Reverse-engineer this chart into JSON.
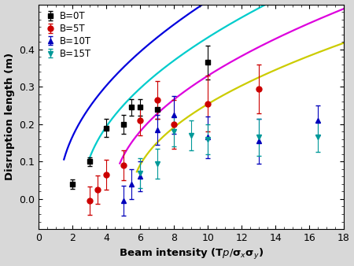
{
  "title": "",
  "xlabel_parts": [
    "Beam intensity (T",
    "p",
    "/",
    "sigma_x",
    "sigma_y",
    ")"
  ],
  "ylabel": "Disruption length (m)",
  "xlim": [
    1,
    18
  ],
  "ylim": [
    -0.08,
    0.52
  ],
  "xticks": [
    0,
    2,
    4,
    6,
    8,
    10,
    12,
    14,
    16,
    18
  ],
  "yticks": [
    0.0,
    0.1,
    0.2,
    0.3,
    0.4
  ],
  "series": [
    {
      "label": "B=0T",
      "color": "#000000",
      "marker": "s",
      "x": [
        2,
        3,
        4,
        5,
        5.5,
        6,
        7,
        10
      ],
      "y": [
        0.04,
        0.1,
        0.19,
        0.2,
        0.245,
        0.245,
        0.24,
        0.365
      ],
      "yerr": [
        0.012,
        0.012,
        0.025,
        0.025,
        0.022,
        0.022,
        0.025,
        0.045
      ]
    },
    {
      "label": "B=5T",
      "color": "#cc0000",
      "marker": "o",
      "x": [
        3,
        3.5,
        4,
        5,
        6,
        7,
        8,
        10,
        13
      ],
      "y": [
        -0.005,
        0.025,
        0.065,
        0.09,
        0.21,
        0.265,
        0.2,
        0.255,
        0.295
      ],
      "yerr": [
        0.038,
        0.038,
        0.04,
        0.04,
        0.04,
        0.05,
        0.065,
        0.075,
        0.065
      ]
    },
    {
      "label": "B=10T",
      "color": "#0000bb",
      "marker": "^",
      "x": [
        5,
        5.5,
        6,
        7,
        8,
        10,
        13,
        16.5
      ],
      "y": [
        -0.005,
        0.04,
        0.06,
        0.185,
        0.225,
        0.165,
        0.155,
        0.21
      ],
      "yerr": [
        0.04,
        0.04,
        0.04,
        0.04,
        0.05,
        0.055,
        0.06,
        0.04
      ]
    },
    {
      "label": "B=15T",
      "color": "#009999",
      "marker": "v",
      "x": [
        6,
        7,
        8,
        9,
        10,
        13,
        16.5
      ],
      "y": [
        0.07,
        0.095,
        0.18,
        0.17,
        0.16,
        0.165,
        0.165
      ],
      "yerr": [
        0.04,
        0.04,
        0.04,
        0.04,
        0.04,
        0.05,
        0.04
      ]
    }
  ],
  "curves": [
    {
      "color": "#0000dd",
      "x0": 1.5,
      "x1": 18,
      "a": 0.175,
      "b": -1.2,
      "c": 0.01
    },
    {
      "color": "#00cccc",
      "x0": 3.0,
      "x1": 18,
      "a": 0.155,
      "b": -2.6,
      "c": 0.01
    },
    {
      "color": "#dd00dd",
      "x0": 4.8,
      "x1": 18,
      "a": 0.135,
      "b": -4.4,
      "c": 0.01
    },
    {
      "color": "#cccc00",
      "x0": 5.8,
      "x1": 18,
      "a": 0.115,
      "b": -5.5,
      "c": 0.01
    }
  ],
  "figure_facecolor": "#d8d8d8",
  "axes_facecolor": "#ffffff"
}
